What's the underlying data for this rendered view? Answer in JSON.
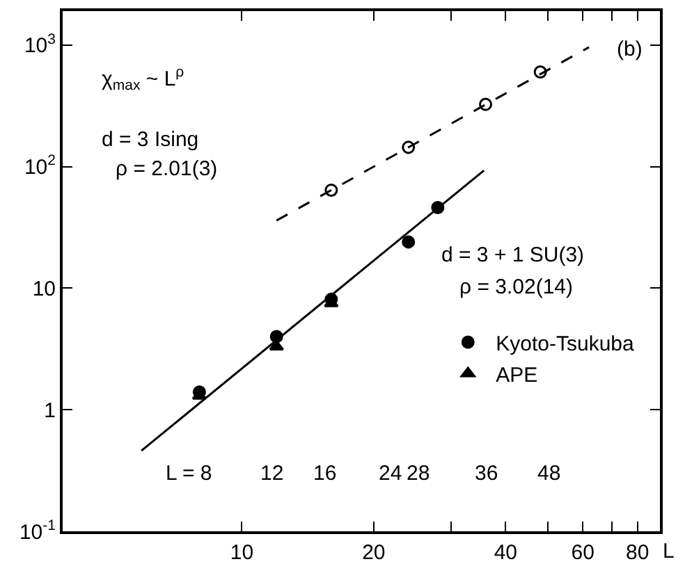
{
  "chart_data": {
    "type": "scatter",
    "log": "xy",
    "xlabel": "L",
    "xlim": [
      3.9,
      90
    ],
    "ylim": [
      0.1,
      1900
    ],
    "xticks": [
      10,
      20,
      {
        "value": 30,
        "label": null
      },
      40,
      {
        "value": 50,
        "label": null
      },
      60,
      {
        "value": 70,
        "label": null
      },
      80
    ],
    "yticks": [
      {
        "value": 0.1,
        "label": "10$^{-1}$"
      },
      1,
      10,
      {
        "value": 100,
        "label": "10$^{2}$"
      },
      {
        "value": 1000,
        "label": "10$^{3}$"
      }
    ],
    "legend": "bottom right",
    "series": [
      {
        "name": "Kyoto-Tsukuba",
        "color": "#000000",
        "marker": "circle",
        "x": [
          8,
          12,
          16,
          24,
          28
        ],
        "values": [
          1.4,
          4.0,
          8.1,
          24,
          46
        ]
      },
      {
        "color": "#000000",
        "marker": "circle-open",
        "x": [
          16,
          24,
          36,
          48
        ],
        "values": [
          64,
          144,
          325,
          600
        ]
      },
      {
        "name": "APE",
        "color": "#000000",
        "marker": "triangle",
        "x": [
          8,
          12,
          16
        ],
        "values": [
          1.3,
          3.3,
          7.5
        ]
      },
      {
        "type": "line",
        "color": "#000000",
        "marker": "none",
        "line_style": "dashed",
        "x": [
          12,
          62
        ],
        "values": [
          36,
          960
        ]
      },
      {
        "type": "line",
        "color": "#000000",
        "marker": "none",
        "line_style": "solid",
        "x": [
          5.9,
          35.7
        ],
        "values": [
          0.46,
          93
        ]
      }
    ],
    "annotations": [
      "χ$_{max}$ ~ L$^{ρ}$",
      "(b)",
      "d = 3 Ising",
      "ρ = 2.01(3)",
      "d = 3 + 1 SU(3)",
      "ρ = 3.02(14)",
      "L = 8",
      "12",
      "16",
      "24",
      "28",
      "36",
      "48"
    ]
  }
}
